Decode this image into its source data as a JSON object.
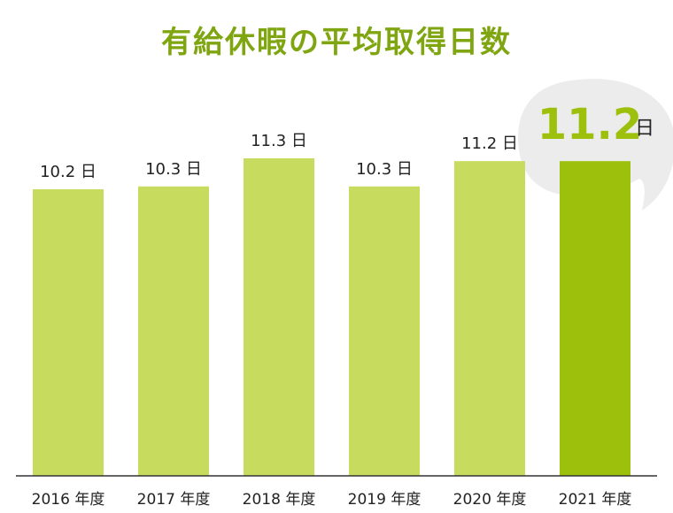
{
  "title": "有給休暇の平均取得日数",
  "chart_data": {
    "type": "bar",
    "title": "有給休暇の平均取得日数",
    "categories": [
      "2016 年度",
      "2017 年度",
      "2018 年度",
      "2019 年度",
      "2020 年度",
      "2021 年度"
    ],
    "values": [
      10.2,
      10.3,
      11.3,
      10.3,
      11.2,
      11.2
    ],
    "value_labels": [
      "10.2 日",
      "10.3 日",
      "11.3 日",
      "10.3 日",
      "11.2 日",
      "11.2 日"
    ],
    "unit": "日",
    "highlight": {
      "index": 5,
      "value": "11.2",
      "unit": "日"
    },
    "ylim": [
      0,
      11.3
    ],
    "grid": false,
    "legend": "none",
    "colors": {
      "bar": "#c7db5e",
      "highlight": "#9cc00b",
      "text": "#222222",
      "title": "#7fa611",
      "bubble": "#ececec"
    }
  }
}
